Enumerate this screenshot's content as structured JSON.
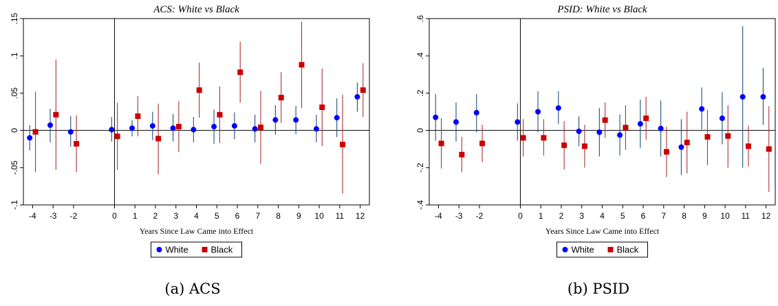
{
  "chart_data": [
    {
      "type": "scatter",
      "title": "ACS: White vs Black",
      "xlabel": "Years Since Law Came into Effect",
      "ylabel": "",
      "caption": "(a) ACS",
      "x": [
        -4,
        -3,
        -2,
        0,
        1,
        2,
        3,
        4,
        5,
        6,
        7,
        8,
        9,
        10,
        11,
        12
      ],
      "xticks": [
        "-4",
        "-3",
        "-2",
        "0",
        "1",
        "2",
        "3",
        "4",
        "5",
        "6",
        "7",
        "8",
        "9",
        "10",
        "11",
        "12"
      ],
      "ylim": [
        -0.1,
        0.15
      ],
      "yticks": [
        "-.1",
        "-.05",
        "0",
        ".05",
        ".1",
        ".15"
      ],
      "yticks_values": [
        -0.1,
        -0.05,
        0,
        0.05,
        0.1,
        0.15
      ],
      "vline_x": 0,
      "hline_y": 0,
      "grid": false,
      "legend_position": "bottom",
      "series": [
        {
          "name": "White",
          "color": "#0000ff",
          "marker": "circle",
          "values": [
            -0.01,
            0.007,
            -0.002,
            0.001,
            0.003,
            0.006,
            0.003,
            0.001,
            0.005,
            0.006,
            0.002,
            0.014,
            0.014,
            0.002,
            0.017,
            0.045
          ],
          "ci_low": [
            -0.027,
            -0.016,
            -0.022,
            -0.015,
            -0.008,
            -0.013,
            -0.015,
            -0.016,
            -0.018,
            -0.012,
            -0.016,
            -0.006,
            -0.005,
            -0.016,
            -0.009,
            0.025
          ],
          "ci_high": [
            0.007,
            0.029,
            0.019,
            0.018,
            0.014,
            0.025,
            0.022,
            0.018,
            0.028,
            0.024,
            0.021,
            0.034,
            0.033,
            0.021,
            0.043,
            0.064
          ]
        },
        {
          "name": "Black",
          "color": "#cc0000",
          "marker": "square",
          "values": [
            -0.002,
            0.021,
            -0.018,
            -0.008,
            0.019,
            -0.011,
            0.005,
            0.054,
            0.021,
            0.078,
            0.004,
            0.044,
            0.088,
            0.031,
            -0.019,
            0.054
          ],
          "ci_low": [
            -0.056,
            -0.053,
            -0.056,
            -0.053,
            -0.008,
            -0.059,
            -0.029,
            0.017,
            -0.017,
            0.037,
            -0.045,
            0.01,
            0.03,
            -0.021,
            -0.085,
            0.018
          ],
          "ci_high": [
            0.052,
            0.095,
            0.02,
            0.037,
            0.046,
            0.036,
            0.039,
            0.091,
            0.059,
            0.119,
            0.053,
            0.078,
            0.146,
            0.083,
            0.048,
            0.09
          ]
        }
      ]
    },
    {
      "type": "scatter",
      "title": "PSID: White vs Black",
      "xlabel": "Years Since Law Came into Effect",
      "ylabel": "",
      "caption": "(b) PSID",
      "x": [
        -4,
        -3,
        -2,
        0,
        1,
        2,
        3,
        4,
        5,
        6,
        7,
        8,
        9,
        10,
        11,
        12
      ],
      "xticks": [
        "-4",
        "-3",
        "-2",
        "0",
        "1",
        "2",
        "3",
        "4",
        "5",
        "6",
        "7",
        "8",
        "9",
        "10",
        "11",
        "12"
      ],
      "ylim": [
        -0.4,
        0.6
      ],
      "yticks": [
        "-.4",
        "-.2",
        "0",
        ".2",
        ".4",
        ".6"
      ],
      "yticks_values": [
        -0.4,
        -0.2,
        0,
        0.2,
        0.4,
        0.6
      ],
      "vline_x": 0,
      "hline_y": 0,
      "grid": false,
      "legend_position": "bottom",
      "series": [
        {
          "name": "White",
          "color": "#0000ff",
          "marker": "circle",
          "values": [
            0.07,
            0.045,
            0.095,
            0.045,
            0.1,
            0.12,
            -0.005,
            -0.01,
            -0.025,
            0.035,
            0.01,
            -0.09,
            0.115,
            0.065,
            0.18,
            0.18
          ],
          "ci_low": [
            -0.055,
            -0.06,
            -0.01,
            -0.055,
            -0.01,
            0.035,
            -0.085,
            -0.14,
            -0.135,
            -0.095,
            -0.14,
            -0.24,
            0.005,
            -0.075,
            -0.2,
            0.03
          ],
          "ci_high": [
            0.195,
            0.15,
            0.195,
            0.145,
            0.21,
            0.21,
            0.075,
            0.12,
            0.085,
            0.165,
            0.16,
            0.06,
            0.23,
            0.205,
            0.56,
            0.335
          ]
        },
        {
          "name": "Black",
          "color": "#cc0000",
          "marker": "square",
          "values": [
            -0.07,
            -0.13,
            -0.07,
            -0.04,
            -0.04,
            -0.08,
            -0.085,
            0.055,
            0.015,
            0.065,
            -0.115,
            -0.065,
            -0.035,
            -0.03,
            -0.085,
            -0.1
          ],
          "ci_low": [
            -0.205,
            -0.225,
            -0.17,
            -0.14,
            -0.135,
            -0.21,
            -0.2,
            -0.04,
            -0.105,
            -0.05,
            -0.25,
            -0.23,
            -0.185,
            -0.2,
            -0.195,
            -0.33
          ],
          "ci_high": [
            0.065,
            -0.035,
            0.03,
            0.06,
            0.06,
            0.05,
            0.03,
            0.15,
            0.135,
            0.18,
            0.02,
            0.1,
            0.11,
            0.135,
            0.025,
            0.13
          ]
        }
      ]
    }
  ]
}
